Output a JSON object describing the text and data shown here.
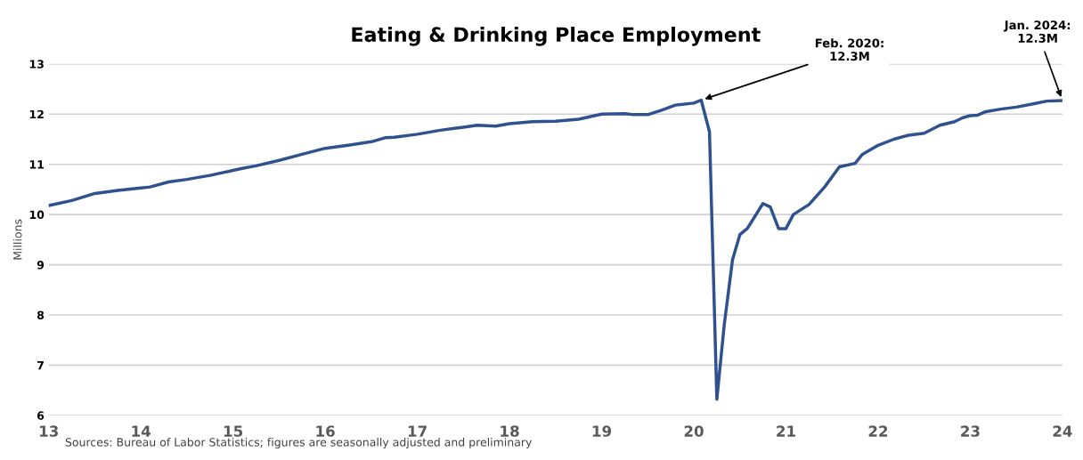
{
  "chart_data": {
    "type": "line",
    "title": "Eating & Drinking Place Employment",
    "ylabel": "Millions",
    "x": [
      13.0,
      13.25,
      13.5,
      13.75,
      14.0,
      14.1,
      14.3,
      14.5,
      14.75,
      15.0,
      15.1,
      15.25,
      15.5,
      15.75,
      16.0,
      16.25,
      16.5,
      16.65,
      16.75,
      17.0,
      17.25,
      17.5,
      17.65,
      17.85,
      18.0,
      18.25,
      18.5,
      18.75,
      19.0,
      19.25,
      19.35,
      19.5,
      19.65,
      19.8,
      20.0,
      20.08,
      20.17,
      20.25,
      20.33,
      20.42,
      20.5,
      20.58,
      20.75,
      20.83,
      20.92,
      21.0,
      21.08,
      21.25,
      21.42,
      21.58,
      21.75,
      21.83,
      22.0,
      22.17,
      22.33,
      22.5,
      22.67,
      22.83,
      22.92,
      23.0,
      23.08,
      23.17,
      23.33,
      23.5,
      23.67,
      23.83,
      24.0
    ],
    "series": [
      {
        "color": "#2f528f",
        "values": [
          10.18,
          10.28,
          10.42,
          10.48,
          10.53,
          10.55,
          10.65,
          10.7,
          10.78,
          10.88,
          10.92,
          10.97,
          11.08,
          11.2,
          11.32,
          11.38,
          11.45,
          11.53,
          11.54,
          11.6,
          11.68,
          11.74,
          11.78,
          11.76,
          11.81,
          11.85,
          11.86,
          11.9,
          12.0,
          12.01,
          11.99,
          11.99,
          12.08,
          12.18,
          12.22,
          12.28,
          11.65,
          6.32,
          7.8,
          9.1,
          9.6,
          9.72,
          10.22,
          10.15,
          9.72,
          9.72,
          10.0,
          10.2,
          10.55,
          10.95,
          11.02,
          11.2,
          11.38,
          11.5,
          11.58,
          11.62,
          11.78,
          11.85,
          11.93,
          11.97,
          11.98,
          12.05,
          12.1,
          12.14,
          12.2,
          12.26,
          12.27
        ]
      }
    ],
    "xlim": [
      13,
      24
    ],
    "xticks": [
      13,
      14,
      15,
      16,
      17,
      18,
      19,
      20,
      21,
      22,
      23,
      24
    ],
    "ylim": [
      6,
      13
    ],
    "yticks": [
      6,
      7,
      8,
      9,
      10,
      11,
      12,
      13
    ],
    "grid": "y",
    "legend": false,
    "marker": "none",
    "line_style": "solid",
    "annotations": [
      {
        "text": "Feb. 2020:\n12.3M",
        "x": 20.08,
        "y": 12.28
      },
      {
        "text": "Jan. 2024:\n12.3M",
        "x": 24,
        "y": 12.27
      },
      "Sources: Bureau of Labor Statistics; figures are seasonally adjusted and preliminary"
    ]
  }
}
